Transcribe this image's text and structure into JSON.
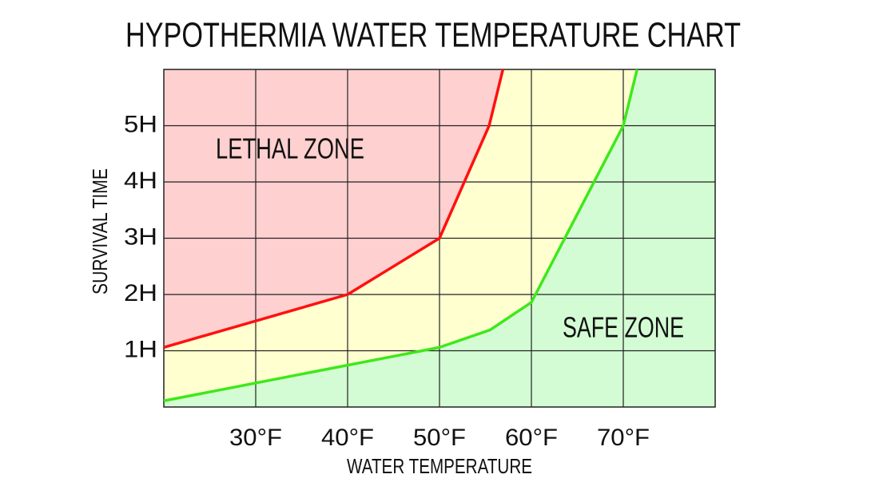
{
  "chart_data": {
    "type": "line",
    "title": "HYPOTHERMIA WATER TEMPERATURE CHART",
    "x_label": "WATER TEMPERATURE",
    "y_label": "SURVIVAL TIME",
    "xlim": [
      20,
      80
    ],
    "ylim": [
      0,
      6
    ],
    "xticks": [
      {
        "value": 30,
        "label": "30°F"
      },
      {
        "value": 40,
        "label": "40°F"
      },
      {
        "value": 50,
        "label": "50°F"
      },
      {
        "value": 60,
        "label": "60°F"
      },
      {
        "value": 70,
        "label": "70°F"
      }
    ],
    "yticks": [
      {
        "value": 1,
        "label": "1H"
      },
      {
        "value": 2,
        "label": "2H"
      },
      {
        "value": 3,
        "label": "3H"
      },
      {
        "value": 4,
        "label": "4H"
      },
      {
        "value": 5,
        "label": "5H"
      }
    ],
    "grid": true,
    "band_fill": "#ffffd0",
    "series": [
      {
        "color": "#ff1010",
        "fill": "#ffd0d0",
        "fill_side": "above",
        "x": [
          20,
          40,
          50,
          55.4,
          56.9
        ],
        "values": [
          1.06,
          2,
          3,
          5,
          6
        ]
      },
      {
        "color": "#3ee81a",
        "fill": "#d4fcd4",
        "fill_side": "below",
        "x": [
          20,
          50,
          55.5,
          60,
          70,
          71.5
        ],
        "values": [
          0.11,
          1.06,
          1.37,
          1.86,
          5,
          6
        ]
      }
    ],
    "annotations": [
      "LETHAL ZONE",
      "SAFE ZONE"
    ]
  }
}
